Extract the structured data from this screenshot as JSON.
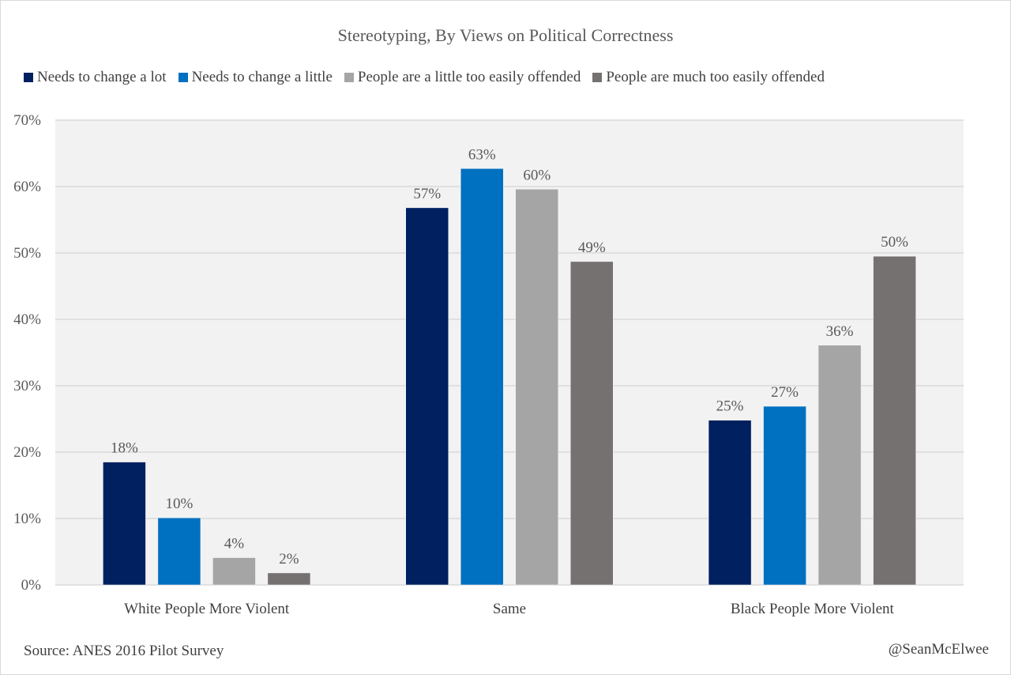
{
  "chart_data": {
    "type": "bar",
    "title": "Stereotyping, By Views on Political Correctness",
    "xlabel": "",
    "ylabel": "",
    "ylim": [
      0,
      70
    ],
    "yticks": [
      0,
      10,
      20,
      30,
      40,
      50,
      60,
      70
    ],
    "ytick_labels": [
      "0%",
      "10%",
      "20%",
      "30%",
      "40%",
      "50%",
      "60%",
      "70%"
    ],
    "grid": true,
    "legend_position": "top",
    "categories": [
      "White People More Violent",
      "Same",
      "Black People More Violent"
    ],
    "series": [
      {
        "name": "Needs to change a lot",
        "color": "#002060",
        "values": [
          18.5,
          56.8,
          24.8
        ],
        "labels": [
          "18%",
          "57%",
          "25%"
        ]
      },
      {
        "name": "Needs to change a little",
        "color": "#0070c0",
        "values": [
          10.1,
          62.7,
          26.9
        ],
        "labels": [
          "10%",
          "63%",
          "27%"
        ]
      },
      {
        "name": "People are a little too easily offended",
        "color": "#a5a5a5",
        "values": [
          4.1,
          59.6,
          36.1
        ],
        "labels": [
          "4%",
          "60%",
          "36%"
        ]
      },
      {
        "name": "People are much too easily offended",
        "color": "#767171",
        "values": [
          1.8,
          48.7,
          49.5
        ],
        "labels": [
          "2%",
          "49%",
          "50%"
        ]
      }
    ]
  },
  "footer": {
    "source": "Source: ANES 2016 Pilot Survey",
    "credit": "@SeanMcElwee"
  },
  "colors": {
    "plot_background": "#f2f2f2",
    "gridline": "#d9d9d9",
    "text": "#595959"
  }
}
